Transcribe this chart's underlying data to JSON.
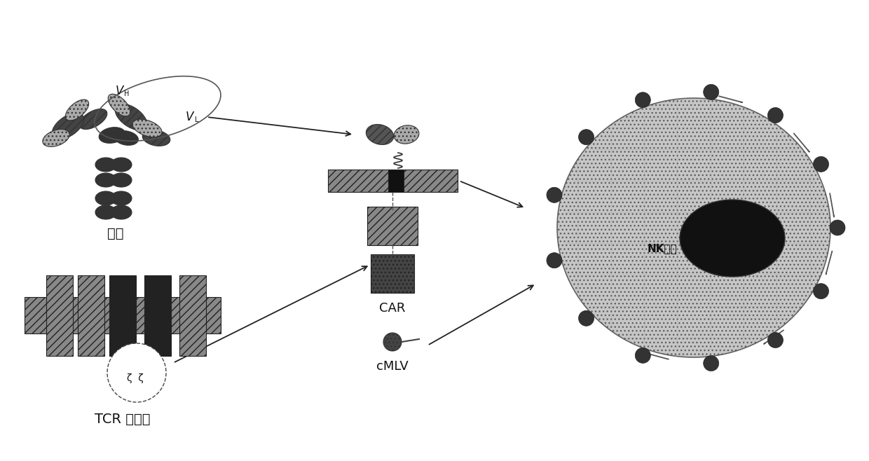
{
  "bg_color": "#ffffff",
  "antibody_label": "抗体",
  "tcr_label": "TCR 复合物",
  "car_label": "CAR",
  "cmlv_label": "cMLV",
  "nk_label": "NK细胞",
  "vh_label": "V",
  "vl_label": "V",
  "vh_sub": "H",
  "vl_sub": "L",
  "zeta_label": "ζ  ζ",
  "dark_color": "#111111",
  "med_dark": "#444444",
  "medium_color": "#777777",
  "light_color": "#aaaaaa",
  "cell_fill": "#c8c8c8",
  "arrow_color": "#222222"
}
